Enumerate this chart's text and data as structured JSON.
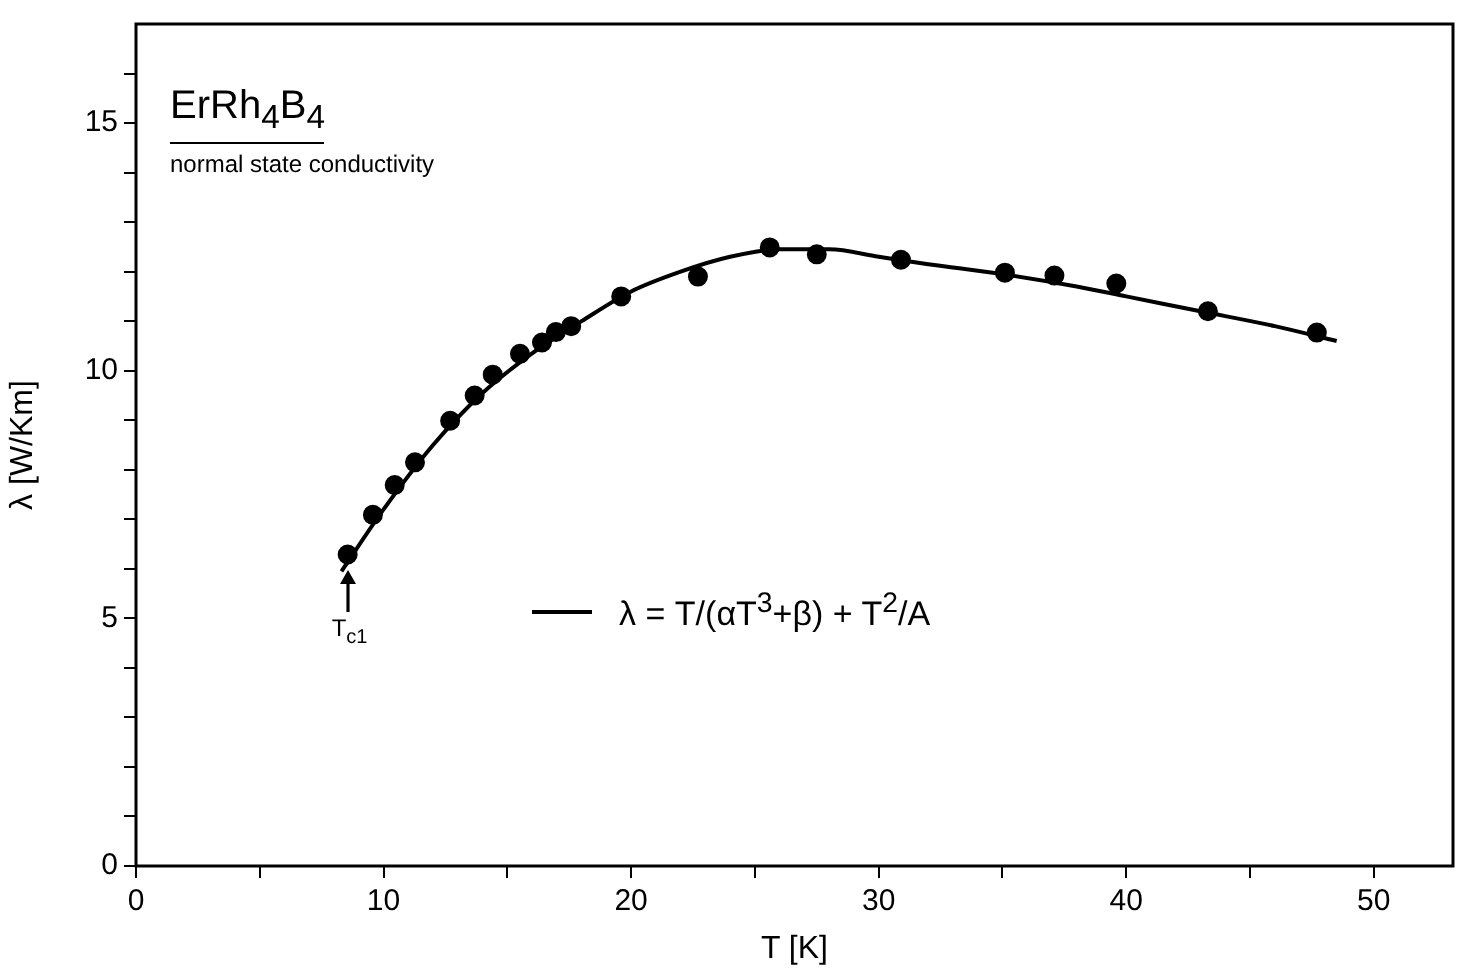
{
  "chart_data": {
    "type": "scatter",
    "title": "ErRh$_{4}$B$_{4}$",
    "subtitle": "normal state conductivity",
    "xlabel": "T [K]",
    "ylabel": "λ [W/Km]",
    "annotations": [
      {
        "text": "T$_{c1}$",
        "x": 8.55,
        "y": 6.29
      }
    ],
    "xlim": [
      0,
      53.2
    ],
    "ylim": [
      0,
      17
    ],
    "xticks": [
      0,
      {
        "value": 5,
        "label": null
      },
      10,
      {
        "value": 15,
        "label": null
      },
      20,
      {
        "value": 25,
        "label": null
      },
      30,
      {
        "value": 35,
        "label": null
      },
      40,
      {
        "value": 45,
        "label": null
      },
      50
    ],
    "yticks": [
      0,
      {
        "value": 1,
        "label": null
      },
      {
        "value": 2,
        "label": null
      },
      {
        "value": 3,
        "label": null
      },
      {
        "value": 4,
        "label": null
      },
      5,
      {
        "value": 6,
        "label": null
      },
      {
        "value": 7,
        "label": null
      },
      {
        "value": 8,
        "label": null
      },
      {
        "value": 9,
        "label": null
      },
      10,
      {
        "value": 11,
        "label": null
      },
      {
        "value": 12,
        "label": null
      },
      {
        "value": 13,
        "label": null
      },
      {
        "value": 14,
        "label": null
      },
      15,
      {
        "value": 16,
        "label": null
      }
    ],
    "grid": false,
    "legend": "center",
    "marker": "circle",
    "series": [
      {
        "color": "#000000",
        "x": [
          8.55,
          9.57,
          10.45,
          11.27,
          12.69,
          13.68,
          14.41,
          15.51,
          16.4,
          16.96,
          17.58,
          19.6,
          22.7,
          25.6,
          27.5,
          30.9,
          35.1,
          37.1,
          39.6,
          43.3,
          47.7
        ],
        "values": [
          6.29,
          7.09,
          7.69,
          8.15,
          8.99,
          9.5,
          9.92,
          10.34,
          10.57,
          10.78,
          10.9,
          11.5,
          11.9,
          12.49,
          12.35,
          12.24,
          11.98,
          11.92,
          11.76,
          11.2,
          10.77
        ]
      },
      {
        "type": "line",
        "name": "λ = T/(αT$^{3}$+β) + T$^{2}$/A",
        "color": "#000000",
        "marker": "none",
        "line_style": "solid",
        "x": [
          8.3,
          10,
          12,
          14,
          16,
          18,
          20,
          22,
          24,
          26,
          28,
          30,
          32,
          35,
          38,
          40,
          43,
          46,
          48.5
        ],
        "values": [
          5.95,
          7.2,
          8.5,
          9.55,
          10.35,
          11.0,
          11.6,
          12.0,
          12.3,
          12.45,
          12.45,
          12.3,
          12.15,
          11.95,
          11.7,
          11.5,
          11.2,
          10.9,
          10.6
        ]
      }
    ]
  }
}
